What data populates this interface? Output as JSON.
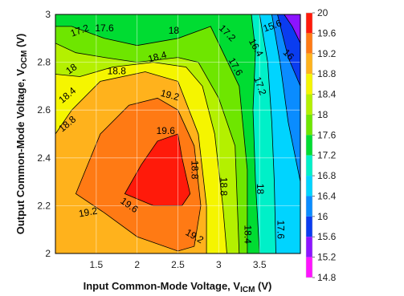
{
  "chart_data": {
    "type": "heatmap",
    "xlabel": {
      "main": "Input Common-Mode Voltage, V",
      "sub": "ICM",
      "suffix": " (V)"
    },
    "ylabel": {
      "main": "Output Common-Mode Voltage, V",
      "sub": "OCM",
      "suffix": " (V)"
    },
    "xlim": [
      1,
      4
    ],
    "ylim": [
      2,
      3
    ],
    "x_ticks": [
      {
        "value": 1.5,
        "label": "1.5"
      },
      {
        "value": 2,
        "label": "2"
      },
      {
        "value": 2.5,
        "label": "2.5"
      },
      {
        "value": 3,
        "label": "3"
      },
      {
        "value": 3.5,
        "label": "3.5"
      }
    ],
    "y_ticks": [
      {
        "value": 2,
        "label": "2"
      },
      {
        "value": 2.2,
        "label": "2.2"
      },
      {
        "value": 2.4,
        "label": "2.4"
      },
      {
        "value": 2.6,
        "label": "2.6"
      },
      {
        "value": 2.8,
        "label": "2.8"
      },
      {
        "value": 3,
        "label": "3"
      }
    ],
    "grid": true,
    "colorbar": {
      "position": "right",
      "min": 14.8,
      "max": 20,
      "labels": [
        "20",
        "19.6",
        "19.2",
        "18.8",
        "18.4",
        "18",
        "17.6",
        "17.2",
        "16.8",
        "16.4",
        "16",
        "15.6",
        "15.2",
        "14.8"
      ],
      "bands": [
        {
          "from": 19.6,
          "to": 20,
          "color": "#ff1a0a"
        },
        {
          "from": 19.2,
          "to": 19.6,
          "color": "#ff7a14"
        },
        {
          "from": 18.8,
          "to": 19.2,
          "color": "#ffb21c"
        },
        {
          "from": 18.4,
          "to": 18.8,
          "color": "#f5f500"
        },
        {
          "from": 18,
          "to": 18.4,
          "color": "#b4f000"
        },
        {
          "from": 17.6,
          "to": 18,
          "color": "#6ee600"
        },
        {
          "from": 17.2,
          "to": 17.6,
          "color": "#00dc32"
        },
        {
          "from": 16.8,
          "to": 17.2,
          "color": "#00f0c8"
        },
        {
          "from": 16.4,
          "to": 16.8,
          "color": "#00d4ff"
        },
        {
          "from": 16,
          "to": 16.4,
          "color": "#0a8cff"
        },
        {
          "from": 15.6,
          "to": 16,
          "color": "#0a3cf0"
        },
        {
          "from": 15.2,
          "to": 15.6,
          "color": "#8c14ff"
        },
        {
          "from": 14.8,
          "to": 15.2,
          "color": "#ff14ff"
        }
      ]
    },
    "regions": [
      {
        "level": 17.2,
        "color": "#00f0c8",
        "points": [
          [
            3.4,
            3
          ],
          [
            4,
            3
          ],
          [
            4,
            2
          ],
          [
            3.5,
            2
          ],
          [
            3.45,
            2.3
          ],
          [
            3.42,
            2.6
          ],
          [
            3.45,
            2.85
          ]
        ]
      },
      {
        "level": 16.8,
        "color": "#00d4ff",
        "points": [
          [
            3.5,
            3
          ],
          [
            4,
            3
          ],
          [
            4,
            2
          ],
          [
            3.7,
            2
          ],
          [
            3.68,
            2.3
          ],
          [
            3.65,
            2.55
          ],
          [
            3.6,
            2.8
          ]
        ]
      },
      {
        "level": 16.4,
        "color": "#0a8cff",
        "points": [
          [
            3.65,
            3
          ],
          [
            4,
            3
          ],
          [
            4,
            2.3
          ],
          [
            3.85,
            2.55
          ],
          [
            3.75,
            2.8
          ]
        ]
      },
      {
        "level": 16,
        "color": "#0a3cf0",
        "points": [
          [
            3.72,
            3
          ],
          [
            4,
            3
          ],
          [
            4,
            2.7
          ],
          [
            3.85,
            2.82
          ]
        ]
      },
      {
        "level": 15.6,
        "color": "#8c14ff",
        "points": [
          [
            3.8,
            3
          ],
          [
            4,
            3
          ],
          [
            4,
            2.88
          ],
          [
            3.9,
            2.95
          ]
        ]
      },
      {
        "level": 17.6,
        "color": "#6ee600",
        "points": [
          [
            1,
            2.95
          ],
          [
            1.2,
            2.95
          ],
          [
            1.6,
            2.9
          ],
          [
            2,
            2.87
          ],
          [
            2.5,
            2.9
          ],
          [
            2.9,
            2.95
          ],
          [
            3.25,
            2.7
          ],
          [
            3.35,
            2.35
          ],
          [
            3.35,
            2
          ],
          [
            1,
            2
          ]
        ]
      },
      {
        "level": 18,
        "color": "#b4f000",
        "points": [
          [
            1,
            2.88
          ],
          [
            1.25,
            2.84
          ],
          [
            1.6,
            2.82
          ],
          [
            2,
            2.8
          ],
          [
            2.5,
            2.82
          ],
          [
            2.75,
            2.8
          ],
          [
            3,
            2.65
          ],
          [
            3.2,
            2.45
          ],
          [
            3.25,
            2
          ],
          [
            1,
            2
          ]
        ]
      },
      {
        "level": 18.4,
        "color": "#f5f500",
        "points": [
          [
            1,
            2.75
          ],
          [
            1.3,
            2.74
          ],
          [
            1.7,
            2.78
          ],
          [
            2.2,
            2.8
          ],
          [
            2.6,
            2.78
          ],
          [
            2.8,
            2.7
          ],
          [
            2.95,
            2.5
          ],
          [
            3.05,
            2.2
          ],
          [
            3.1,
            2
          ],
          [
            1,
            2
          ]
        ]
      },
      {
        "level": 18.8,
        "color": "#ffb21c",
        "points": [
          [
            1,
            2.5
          ],
          [
            1.2,
            2.6
          ],
          [
            1.55,
            2.72
          ],
          [
            2.1,
            2.76
          ],
          [
            2.5,
            2.72
          ],
          [
            2.75,
            2.5
          ],
          [
            2.85,
            2.2
          ],
          [
            2.85,
            2
          ],
          [
            1,
            2
          ]
        ]
      },
      {
        "level": 19.2,
        "color": "#ff7a14",
        "points": [
          [
            1.25,
            2.25
          ],
          [
            1.55,
            2.5
          ],
          [
            1.9,
            2.62
          ],
          [
            2.25,
            2.65
          ],
          [
            2.5,
            2.6
          ],
          [
            2.7,
            2.45
          ],
          [
            2.78,
            2.2
          ],
          [
            2.7,
            2.03
          ],
          [
            2.5,
            2.01
          ],
          [
            2,
            2.07
          ],
          [
            1.6,
            2.17
          ]
        ]
      },
      {
        "level": 19.6,
        "color": "#ff1a0a",
        "points": [
          [
            1.85,
            2.25
          ],
          [
            2.05,
            2.37
          ],
          [
            2.25,
            2.47
          ],
          [
            2.5,
            2.5
          ],
          [
            2.55,
            2.4
          ],
          [
            2.65,
            2.25
          ],
          [
            2.55,
            2.2
          ],
          [
            2.2,
            2.2
          ]
        ]
      }
    ],
    "contour_labels": [
      {
        "text": "17.2",
        "x": 1.3,
        "y": 2.93,
        "angle": -20
      },
      {
        "text": "17.6",
        "x": 1.6,
        "y": 2.94,
        "angle": 0
      },
      {
        "text": "18",
        "x": 2.45,
        "y": 2.93,
        "angle": 0
      },
      {
        "text": "17.2",
        "x": 3.1,
        "y": 2.92,
        "angle": 45
      },
      {
        "text": "16.4",
        "x": 3.45,
        "y": 2.86,
        "angle": 60
      },
      {
        "text": "15.6",
        "x": 3.66,
        "y": 2.95,
        "angle": -20
      },
      {
        "text": "16",
        "x": 3.85,
        "y": 2.83,
        "angle": 45
      },
      {
        "text": "18",
        "x": 1.2,
        "y": 2.77,
        "angle": -35
      },
      {
        "text": "18.4",
        "x": 2.25,
        "y": 2.82,
        "angle": -15
      },
      {
        "text": "18.8",
        "x": 1.75,
        "y": 2.76,
        "angle": 0
      },
      {
        "text": "17.6",
        "x": 3.2,
        "y": 2.78,
        "angle": 60
      },
      {
        "text": "17.2",
        "x": 3.5,
        "y": 2.7,
        "angle": 70
      },
      {
        "text": "18.4",
        "x": 1.15,
        "y": 2.66,
        "angle": -40
      },
      {
        "text": "19.2",
        "x": 2.4,
        "y": 2.66,
        "angle": 15
      },
      {
        "text": "18.8",
        "x": 1.15,
        "y": 2.54,
        "angle": -40
      },
      {
        "text": "19.6",
        "x": 2.35,
        "y": 2.51,
        "angle": 0
      },
      {
        "text": "18.8",
        "x": 2.7,
        "y": 2.35,
        "angle": 90
      },
      {
        "text": "18.8",
        "x": 3.05,
        "y": 2.28,
        "angle": 90
      },
      {
        "text": "18",
        "x": 3.5,
        "y": 2.27,
        "angle": 90
      },
      {
        "text": "19.6",
        "x": 1.9,
        "y": 2.2,
        "angle": 35
      },
      {
        "text": "19.2",
        "x": 1.4,
        "y": 2.17,
        "angle": -10
      },
      {
        "text": "18.4",
        "x": 3.35,
        "y": 2.08,
        "angle": 90
      },
      {
        "text": "17.6",
        "x": 3.75,
        "y": 2.1,
        "angle": 90
      },
      {
        "text": "19.2",
        "x": 2.7,
        "y": 2.07,
        "angle": 30
      }
    ]
  }
}
